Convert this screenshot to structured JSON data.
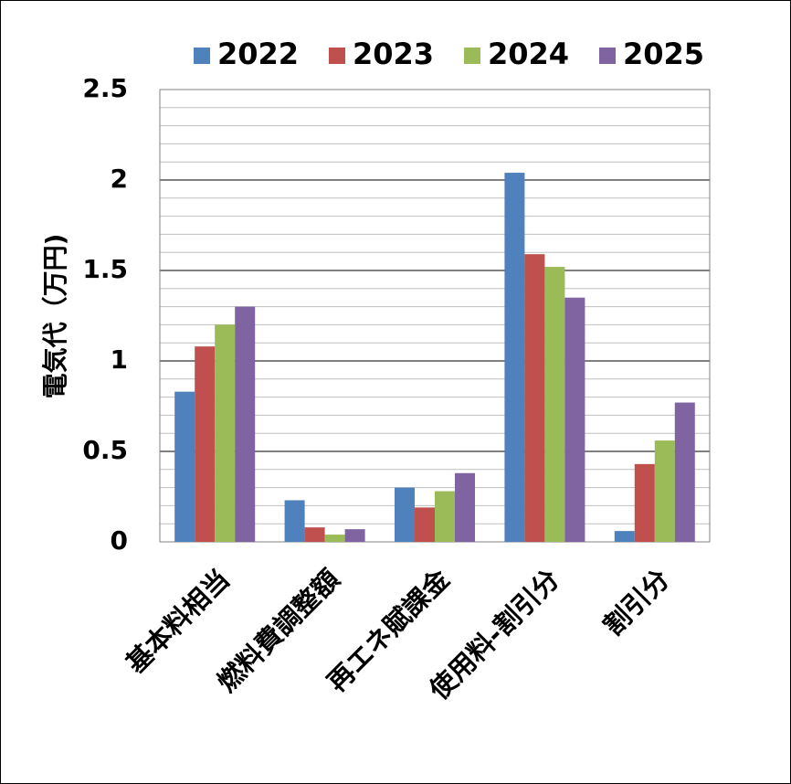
{
  "chart_data": {
    "type": "bar",
    "title": "",
    "ylabel": "電気代（万円)",
    "xlabel": "",
    "categories": [
      "基本料相当",
      "燃料費調整額",
      "再エネ賦課金",
      "使用料-割引分",
      "割引分"
    ],
    "series": [
      {
        "name": "2022",
        "color": "#4F81BD",
        "values": [
          0.83,
          0.23,
          0.3,
          2.04,
          0.06
        ]
      },
      {
        "name": "2023",
        "color": "#C0504D",
        "values": [
          1.08,
          0.08,
          0.19,
          1.59,
          0.43
        ]
      },
      {
        "name": "2024",
        "color": "#9BBB59",
        "values": [
          1.2,
          0.04,
          0.28,
          1.52,
          0.56
        ]
      },
      {
        "name": "2025",
        "color": "#8064A2",
        "values": [
          1.3,
          0.07,
          0.38,
          1.35,
          0.77
        ]
      }
    ],
    "ylim": [
      0,
      2.5
    ],
    "yticks": [
      0,
      0.5,
      1,
      1.5,
      2,
      2.5
    ],
    "ytick_labels": [
      "0",
      "0.5",
      "1",
      "1.5",
      "2",
      "2.5"
    ],
    "major_grid": true,
    "minor_grid": true,
    "legend_position": "top"
  }
}
